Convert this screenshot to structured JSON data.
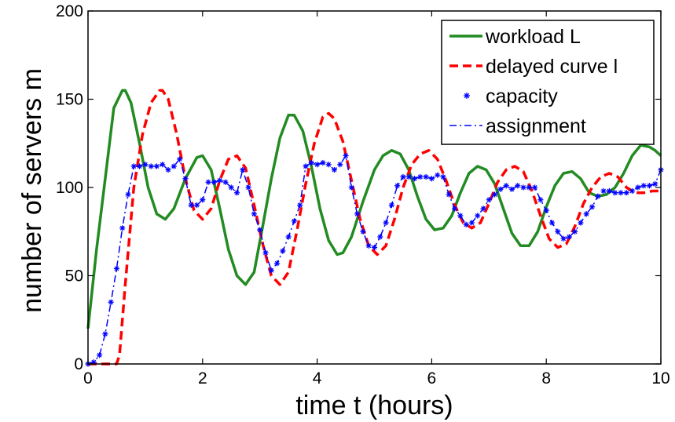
{
  "chart_data": {
    "type": "line",
    "xlabel": "time t (hours)",
    "ylabel": "number of servers m",
    "xlim": [
      0,
      10
    ],
    "ylim": [
      0,
      200
    ],
    "xticks": [
      0,
      2,
      4,
      6,
      8,
      10
    ],
    "yticks": [
      0,
      50,
      100,
      150,
      200
    ],
    "grid": false,
    "legend_position": "top-right",
    "series": [
      {
        "name": "workload L",
        "style": "solid",
        "color": "#228B22",
        "x": [
          0,
          0.15,
          0.3,
          0.45,
          0.6,
          0.65,
          0.75,
          0.9,
          1.05,
          1.2,
          1.35,
          1.5,
          1.7,
          1.9,
          2.0,
          2.15,
          2.3,
          2.45,
          2.6,
          2.75,
          2.9,
          3.05,
          3.2,
          3.35,
          3.5,
          3.6,
          3.75,
          3.9,
          4.05,
          4.2,
          4.35,
          4.45,
          4.6,
          4.8,
          5.0,
          5.15,
          5.3,
          5.45,
          5.6,
          5.75,
          5.9,
          6.05,
          6.2,
          6.35,
          6.5,
          6.65,
          6.8,
          6.95,
          7.1,
          7.25,
          7.4,
          7.55,
          7.7,
          7.85,
          8.0,
          8.15,
          8.3,
          8.45,
          8.6,
          8.75,
          8.9,
          9.05,
          9.2,
          9.35,
          9.5,
          9.65,
          9.8,
          9.9,
          10.0
        ],
        "values": [
          20,
          65,
          105,
          145,
          155,
          155,
          148,
          125,
          100,
          85,
          82,
          88,
          105,
          117,
          118,
          110,
          88,
          65,
          50,
          45,
          52,
          78,
          105,
          128,
          141,
          141,
          132,
          112,
          88,
          70,
          62,
          63,
          72,
          92,
          110,
          118,
          121,
          119,
          110,
          95,
          82,
          76,
          77,
          84,
          97,
          108,
          112,
          110,
          102,
          88,
          74,
          67,
          67,
          75,
          89,
          101,
          108,
          109,
          105,
          97,
          95,
          96,
          100,
          108,
          118,
          124,
          123,
          121,
          118
        ]
      },
      {
        "name": "delayed curve l",
        "style": "dashed",
        "color": "#ff0000",
        "x": [
          0,
          0.3,
          0.5,
          0.55,
          0.65,
          0.8,
          0.95,
          1.1,
          1.25,
          1.3,
          1.4,
          1.55,
          1.7,
          1.85,
          2.0,
          2.15,
          2.3,
          2.45,
          2.6,
          2.75,
          2.9,
          3.05,
          3.2,
          3.35,
          3.5,
          3.65,
          3.8,
          3.95,
          4.1,
          4.2,
          4.3,
          4.45,
          4.6,
          4.75,
          4.9,
          5.05,
          5.2,
          5.35,
          5.5,
          5.65,
          5.8,
          5.95,
          6.1,
          6.25,
          6.4,
          6.55,
          6.7,
          6.85,
          7.0,
          7.15,
          7.3,
          7.45,
          7.6,
          7.75,
          7.9,
          8.05,
          8.2,
          8.35,
          8.5,
          8.65,
          8.8,
          8.95,
          9.1,
          9.25,
          9.4,
          9.55,
          9.7,
          9.85,
          10.0
        ],
        "values": [
          0,
          0,
          0,
          5,
          45,
          100,
          130,
          148,
          155,
          155,
          150,
          130,
          105,
          87,
          82,
          88,
          104,
          116,
          118,
          111,
          90,
          68,
          50,
          45,
          52,
          76,
          102,
          125,
          140,
          142,
          139,
          126,
          104,
          82,
          67,
          62,
          67,
          82,
          100,
          113,
          119,
          121,
          116,
          104,
          90,
          80,
          77,
          80,
          91,
          103,
          110,
          112,
          109,
          98,
          84,
          71,
          66,
          68,
          78,
          91,
          100,
          106,
          108,
          106,
          100,
          97,
          97,
          98,
          98
        ]
      },
      {
        "name": "capacity",
        "style": "marker",
        "color": "#0000ff",
        "x": [
          0,
          0.1,
          0.2,
          0.3,
          0.4,
          0.5,
          0.6,
          0.7,
          0.8,
          0.9,
          1.0,
          1.1,
          1.2,
          1.3,
          1.4,
          1.5,
          1.6,
          1.7,
          1.8,
          1.9,
          2.0,
          2.1,
          2.2,
          2.3,
          2.4,
          2.5,
          2.6,
          2.7,
          2.8,
          2.9,
          3.0,
          3.1,
          3.2,
          3.3,
          3.4,
          3.5,
          3.6,
          3.7,
          3.8,
          3.9,
          4.0,
          4.1,
          4.2,
          4.3,
          4.4,
          4.5,
          4.6,
          4.7,
          4.8,
          4.9,
          5.0,
          5.1,
          5.2,
          5.3,
          5.4,
          5.5,
          5.6,
          5.7,
          5.8,
          5.9,
          6.0,
          6.1,
          6.2,
          6.3,
          6.4,
          6.5,
          6.6,
          6.7,
          6.8,
          6.9,
          7.0,
          7.1,
          7.2,
          7.3,
          7.4,
          7.5,
          7.6,
          7.7,
          7.8,
          7.9,
          8.0,
          8.1,
          8.2,
          8.3,
          8.4,
          8.5,
          8.6,
          8.7,
          8.8,
          8.9,
          9.0,
          9.1,
          9.2,
          9.3,
          9.4,
          9.5,
          9.6,
          9.7,
          9.8,
          9.9,
          10.0
        ],
        "values": [
          0,
          1,
          5,
          17,
          35,
          54,
          77,
          96,
          112,
          112,
          113,
          112,
          112,
          113,
          110,
          112,
          116,
          105,
          90,
          90,
          93,
          103,
          103,
          104,
          103,
          100,
          97,
          110,
          100,
          85,
          76,
          63,
          53,
          57,
          64,
          72,
          81,
          90,
          112,
          114,
          113,
          114,
          113,
          110,
          113,
          118,
          100,
          85,
          75,
          67,
          66,
          72,
          80,
          90,
          101,
          106,
          106,
          105,
          106,
          106,
          105,
          107,
          106,
          96,
          88,
          84,
          79,
          80,
          84,
          88,
          93,
          96,
          99,
          101,
          99,
          101,
          100,
          100,
          100,
          93,
          87,
          80,
          75,
          71,
          72,
          75,
          80,
          85,
          89,
          95,
          98,
          98,
          97,
          97,
          97,
          98,
          100,
          101,
          101,
          102,
          110
        ]
      },
      {
        "name": "assignment",
        "style": "dashdot",
        "color": "#0000ff",
        "x": [
          0,
          0.1,
          0.2,
          0.3,
          0.4,
          0.5,
          0.6,
          0.7,
          0.8,
          0.9,
          1.0,
          1.1,
          1.2,
          1.3,
          1.4,
          1.5,
          1.6,
          1.7,
          1.8,
          1.9,
          2.0,
          2.1,
          2.2,
          2.3,
          2.4,
          2.5,
          2.6,
          2.7,
          2.8,
          2.9,
          3.0,
          3.1,
          3.2,
          3.3,
          3.4,
          3.5,
          3.6,
          3.7,
          3.8,
          3.9,
          4.0,
          4.1,
          4.2,
          4.3,
          4.4,
          4.5,
          4.6,
          4.7,
          4.8,
          4.9,
          5.0,
          5.1,
          5.2,
          5.3,
          5.4,
          5.5,
          5.6,
          5.7,
          5.8,
          5.9,
          6.0,
          6.1,
          6.2,
          6.3,
          6.4,
          6.5,
          6.6,
          6.7,
          6.8,
          6.9,
          7.0,
          7.1,
          7.2,
          7.3,
          7.4,
          7.5,
          7.6,
          7.7,
          7.8,
          7.9,
          8.0,
          8.1,
          8.2,
          8.3,
          8.4,
          8.5,
          8.6,
          8.7,
          8.8,
          8.9,
          9.0,
          9.1,
          9.2,
          9.3,
          9.4,
          9.5,
          9.6,
          9.7,
          9.8,
          9.9,
          10.0
        ],
        "values": [
          0,
          1,
          5,
          17,
          35,
          54,
          77,
          96,
          112,
          112,
          113,
          112,
          112,
          113,
          110,
          112,
          116,
          105,
          90,
          90,
          93,
          103,
          103,
          104,
          103,
          100,
          97,
          110,
          100,
          85,
          76,
          63,
          53,
          57,
          64,
          72,
          81,
          90,
          112,
          114,
          113,
          114,
          113,
          110,
          113,
          118,
          100,
          85,
          75,
          67,
          66,
          72,
          80,
          90,
          101,
          106,
          106,
          105,
          106,
          106,
          105,
          107,
          106,
          96,
          88,
          84,
          79,
          80,
          84,
          88,
          93,
          96,
          99,
          101,
          99,
          101,
          100,
          100,
          100,
          93,
          87,
          80,
          75,
          71,
          72,
          75,
          80,
          85,
          89,
          95,
          98,
          98,
          97,
          97,
          97,
          98,
          100,
          101,
          101,
          102,
          110
        ]
      }
    ]
  }
}
